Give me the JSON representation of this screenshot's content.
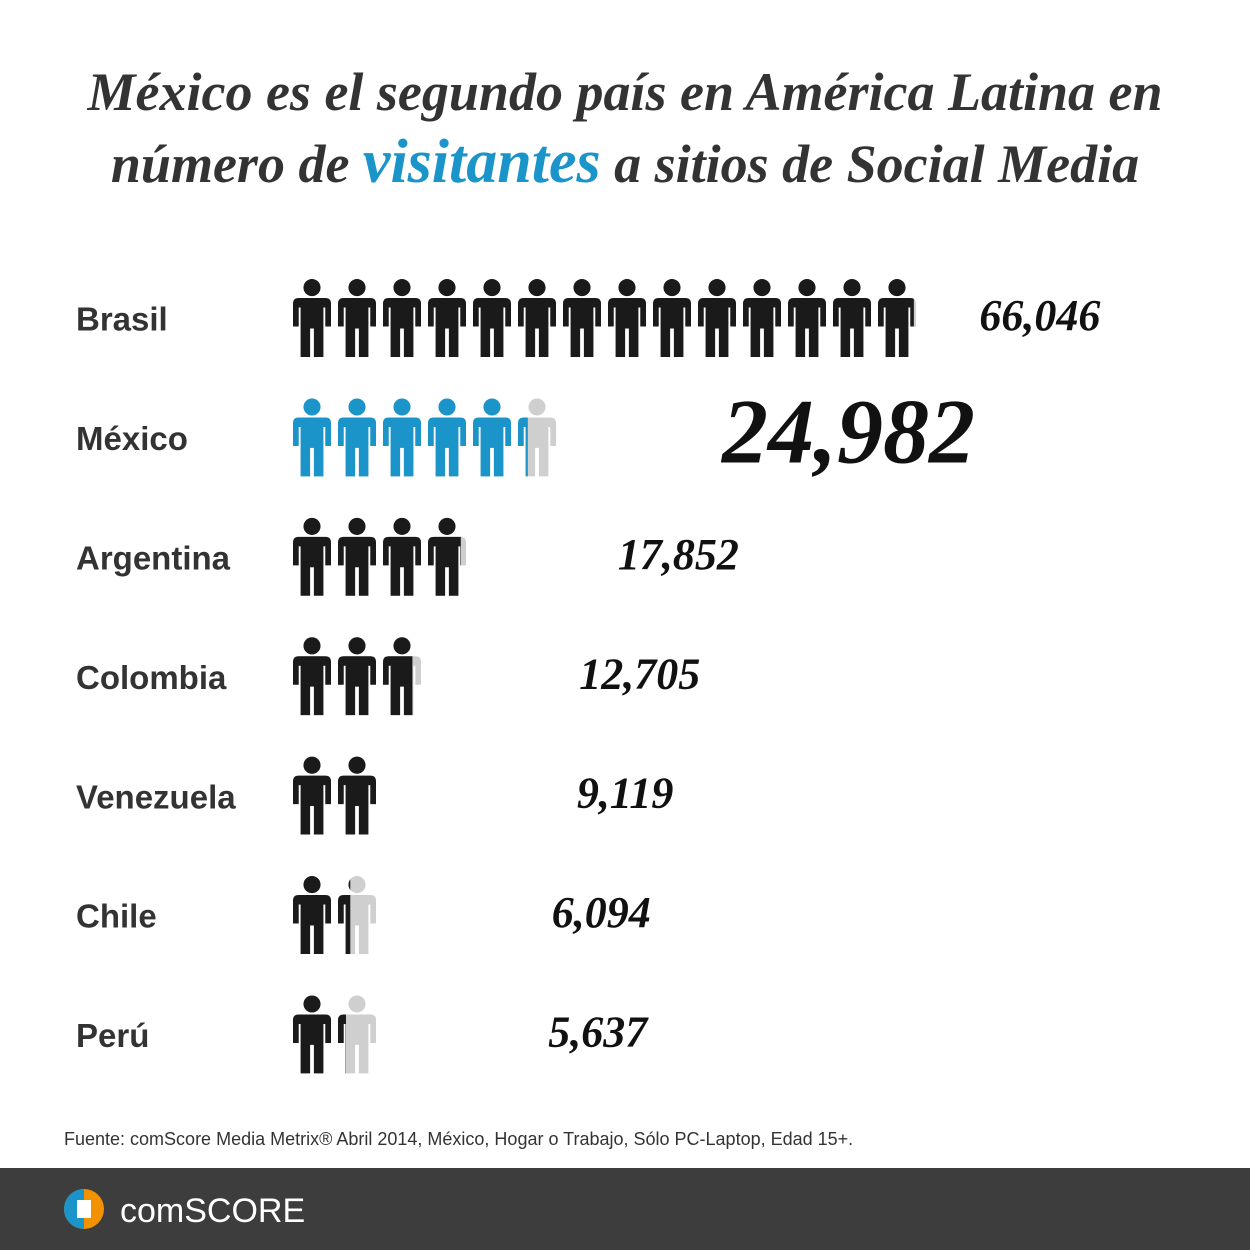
{
  "chart_data": {
    "type": "pictogram",
    "title": {
      "line1": "México es el segundo país en América Latina en",
      "line2": [
        "número de ",
        "visitantes",
        " a sitios de Social Media"
      ]
    },
    "title_highlight_color": "#1b95c9",
    "categories": [
      "Brasil",
      "México",
      "Argentina",
      "Colombia",
      "Venezuela",
      "Chile",
      "Perú"
    ],
    "values": [
      66046,
      24982,
      17852,
      12705,
      9119,
      6094,
      5637
    ],
    "value_labels": [
      "66,046",
      "24,982",
      "17,852",
      "12,705",
      "9,119",
      "6,094",
      "5,637"
    ],
    "colors": [
      "#1a1a1a",
      "#1b95c9",
      "#1a1a1a",
      "#1a1a1a",
      "#1a1a1a",
      "#1a1a1a",
      "#1a1a1a"
    ],
    "empty_color": "#cfcfcf",
    "source": "Fuente: comScore Media Metrix® Abril 2014, México, Hogar o Trabajo, Sólo PC-Laptop, Edad 15+.",
    "brand": "comSCORE"
  }
}
